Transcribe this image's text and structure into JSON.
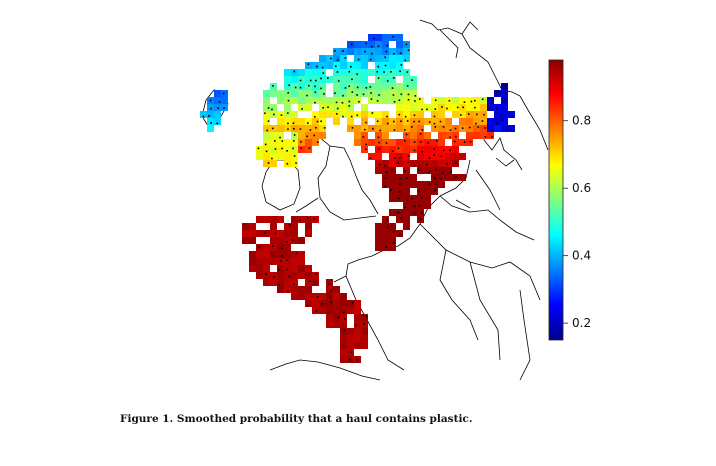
{
  "caption": "Figure 1. Smoothed probability that a haul contains plastic.",
  "colorbar": {
    "ticks": [
      "0.2",
      "0.4",
      "0.6",
      "0.8"
    ],
    "tick_values": [
      0.2,
      0.4,
      0.6,
      0.8
    ],
    "range": [
      0.15,
      0.98
    ],
    "palette": [
      "#00008b",
      "#0000ff",
      "#0080ff",
      "#00ffff",
      "#80ff80",
      "#ffff00",
      "#ff8000",
      "#ff0000",
      "#8b0000"
    ]
  },
  "legend_placement": "right",
  "map_layers": [
    "coastline-outline",
    "probability-grid",
    "haul-locations"
  ]
}
